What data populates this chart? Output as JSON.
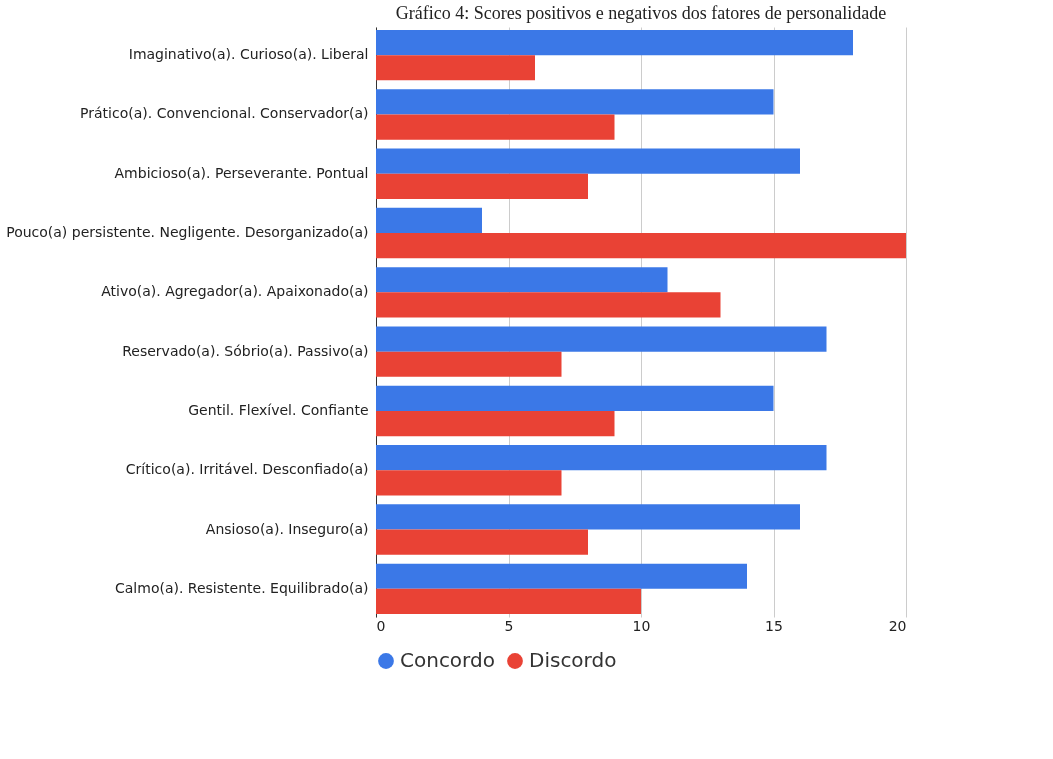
{
  "chart_data": {
    "type": "bar",
    "orientation": "horizontal",
    "title": "Gráfico 4: Scores positivos e negativos dos fatores de personalidade",
    "categories": [
      "Imaginativo(a). Curioso(a). Liberal",
      "Prático(a). Convencional. Conservador(a)",
      "Ambicioso(a). Perseverante. Pontual",
      "Pouco(a) persistente. Negligente. Desorganizado(a)",
      "Ativo(a). Agregador(a). Apaixonado(a)",
      "Reservado(a). Sóbrio(a). Passivo(a)",
      "Gentil. Flexível. Confiante",
      "Crítico(a). Irritável. Desconfiado(a)",
      "Ansioso(a). Inseguro(a)",
      "Calmo(a). Resistente. Equilibrado(a)"
    ],
    "series": [
      {
        "name": "Concordo",
        "color": "#3b78e7",
        "values": [
          18,
          15,
          16,
          4,
          11,
          17,
          15,
          17,
          16,
          14
        ]
      },
      {
        "name": "Discordo",
        "color": "#e94235",
        "values": [
          6,
          9,
          8,
          20,
          13,
          7,
          9,
          7,
          8,
          10
        ]
      }
    ],
    "xlim": [
      0,
      20
    ],
    "xticks": [
      0,
      5,
      10,
      15,
      20
    ],
    "grid": "x",
    "legend": "bottom"
  }
}
